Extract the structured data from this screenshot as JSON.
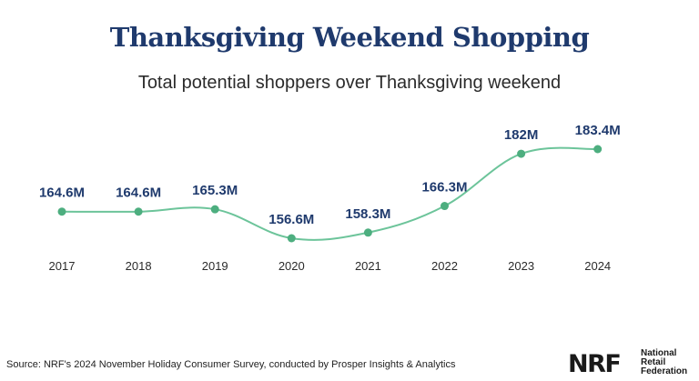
{
  "header": {
    "title": "Thanksgiving Weekend Shopping",
    "subtitle": "Total potential shoppers over Thanksgiving weekend"
  },
  "chart_data": {
    "type": "line",
    "x": [
      "2017",
      "2018",
      "2019",
      "2020",
      "2021",
      "2022",
      "2023",
      "2024"
    ],
    "values": [
      164.6,
      164.6,
      165.3,
      156.6,
      158.3,
      166.3,
      182,
      183.4
    ],
    "data_labels": [
      "164.6M",
      "164.6M",
      "165.3M",
      "156.6M",
      "158.3M",
      "166.3M",
      "182M",
      "183.4M"
    ],
    "unit": "M",
    "grid": false,
    "legend": "none",
    "line_color": "#6cc49a",
    "marker_color": "#4dae7f",
    "label_color": "#1f3a6d"
  },
  "footer": {
    "source": "Source: NRF's 2024 November Holiday Consumer Survey, conducted by Prosper Insights & Analytics",
    "logo_mark": "NRF",
    "logo_words": [
      "National",
      "Retail",
      "Federation"
    ]
  },
  "colors": {
    "title": "#1f3a6d",
    "text": "#2b2b2b"
  }
}
